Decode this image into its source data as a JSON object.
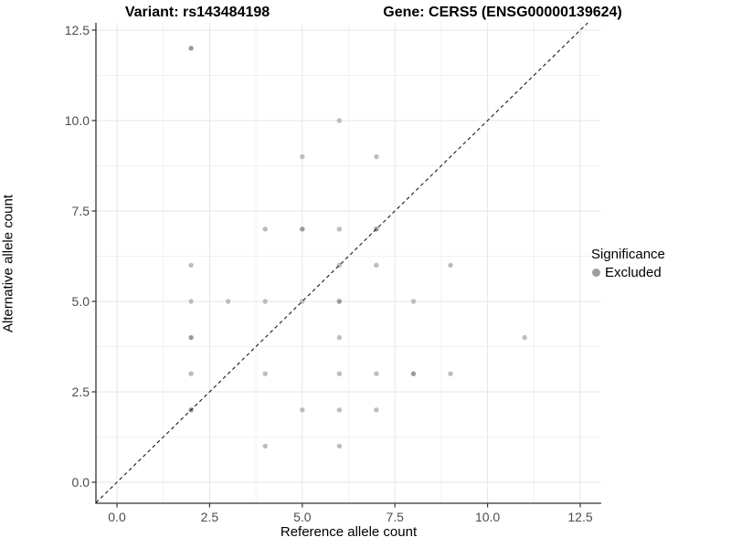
{
  "titles": {
    "variant": "Variant: rs143484198",
    "gene": "Gene: CERS5 (ENSG00000139624)"
  },
  "legend": {
    "title": "Significance",
    "items": [
      {
        "label": "Excluded",
        "key_color": "#9e9e9e"
      }
    ]
  },
  "colors": {
    "background": "#ffffff",
    "point": "#bdbdbd",
    "point_overlap": "#9b9b9b",
    "grid_major": "#e6e6e6",
    "grid_minor": "#f2f2f2",
    "axis_line": "#333333",
    "tick_text": "#4d4d4d",
    "identity_line": "#1a1a1a"
  },
  "chart_data": {
    "type": "scatter",
    "title": "Variant: rs143484198 | Gene: CERS5 (ENSG00000139624)",
    "xlabel": "Reference allele count",
    "ylabel": "Alternative allele count",
    "xlim": [
      -0.6,
      13.1
    ],
    "ylim": [
      -0.6,
      12.7
    ],
    "grid": true,
    "legend_position": "right",
    "x_ticks": [
      0,
      2.5,
      5,
      7.5,
      10,
      12.5
    ],
    "x_tick_labels": [
      "0.0",
      "2.5",
      "5.0",
      "7.5",
      "10.0",
      "12.5"
    ],
    "y_ticks": [
      0,
      2.5,
      5,
      7.5,
      10,
      12.5
    ],
    "y_tick_labels": [
      "0.0",
      "2.5",
      "5.0",
      "7.5",
      "10.0",
      "12.5"
    ],
    "minor_ticks": [
      1.25,
      3.75,
      6.25,
      8.75,
      11.25
    ],
    "identity_line": {
      "style": "dashed",
      "slope": 1,
      "intercept": 0
    },
    "series": [
      {
        "name": "Excluded",
        "points": [
          {
            "x": 2,
            "y": 12,
            "overlap": true
          },
          {
            "x": 6,
            "y": 10
          },
          {
            "x": 5,
            "y": 9
          },
          {
            "x": 7,
            "y": 9
          },
          {
            "x": 4,
            "y": 7
          },
          {
            "x": 5,
            "y": 7,
            "overlap": true
          },
          {
            "x": 6,
            "y": 7
          },
          {
            "x": 7,
            "y": 7,
            "overlap": true
          },
          {
            "x": 2,
            "y": 6
          },
          {
            "x": 6,
            "y": 6
          },
          {
            "x": 7,
            "y": 6
          },
          {
            "x": 9,
            "y": 6
          },
          {
            "x": 2,
            "y": 5
          },
          {
            "x": 3,
            "y": 5
          },
          {
            "x": 4,
            "y": 5
          },
          {
            "x": 5,
            "y": 5
          },
          {
            "x": 6,
            "y": 5,
            "overlap": true
          },
          {
            "x": 8,
            "y": 5
          },
          {
            "x": 2,
            "y": 4,
            "overlap": true
          },
          {
            "x": 6,
            "y": 4
          },
          {
            "x": 11,
            "y": 4
          },
          {
            "x": 2,
            "y": 3
          },
          {
            "x": 4,
            "y": 3
          },
          {
            "x": 6,
            "y": 3
          },
          {
            "x": 7,
            "y": 3
          },
          {
            "x": 8,
            "y": 3,
            "overlap": true
          },
          {
            "x": 9,
            "y": 3
          },
          {
            "x": 2,
            "y": 2,
            "overlap": true
          },
          {
            "x": 5,
            "y": 2
          },
          {
            "x": 6,
            "y": 2
          },
          {
            "x": 7,
            "y": 2
          },
          {
            "x": 4,
            "y": 1
          },
          {
            "x": 6,
            "y": 1
          }
        ]
      }
    ]
  }
}
